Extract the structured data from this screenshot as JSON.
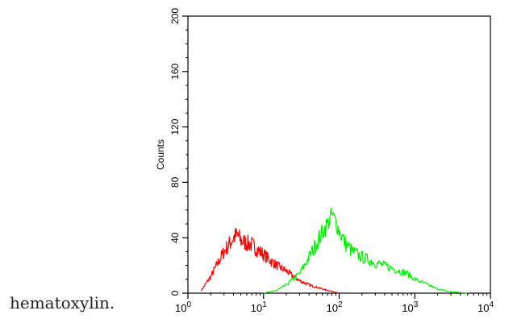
{
  "caption": "hematoxylin.",
  "chart_data": {
    "type": "histogram",
    "xscale": "log",
    "xlim": [
      1,
      10000
    ],
    "ylim": [
      0,
      200
    ],
    "ylabel": "Counts",
    "xticks": [
      {
        "base": "10",
        "exp": "0"
      },
      {
        "base": "10",
        "exp": "1"
      },
      {
        "base": "10",
        "exp": "2"
      },
      {
        "base": "10",
        "exp": "3"
      },
      {
        "base": "10",
        "exp": "4"
      }
    ],
    "yticks": [
      "0",
      "40",
      "80",
      "120",
      "160",
      "200"
    ],
    "colors": {
      "red": "#ff0000",
      "green": "#00ee00"
    },
    "series": [
      {
        "color": "red",
        "x": [
          1.5,
          2,
          2.5,
          3,
          3.5,
          4,
          4.5,
          5,
          6,
          7,
          8,
          10,
          12,
          15,
          20,
          25,
          30,
          40,
          60,
          100
        ],
        "y": [
          2,
          12,
          22,
          30,
          35,
          40,
          42,
          38,
          36,
          35,
          32,
          28,
          24,
          20,
          16,
          12,
          9,
          6,
          3,
          0
        ]
      },
      {
        "color": "green",
        "x": [
          10,
          15,
          20,
          30,
          40,
          50,
          60,
          70,
          80,
          90,
          100,
          120,
          150,
          200,
          300,
          500,
          800,
          1000,
          1500,
          2000,
          3000,
          5000
        ],
        "y": [
          0,
          2,
          6,
          14,
          26,
          36,
          44,
          50,
          56,
          52,
          45,
          36,
          30,
          26,
          22,
          18,
          14,
          10,
          6,
          3,
          1,
          0
        ]
      }
    ]
  }
}
